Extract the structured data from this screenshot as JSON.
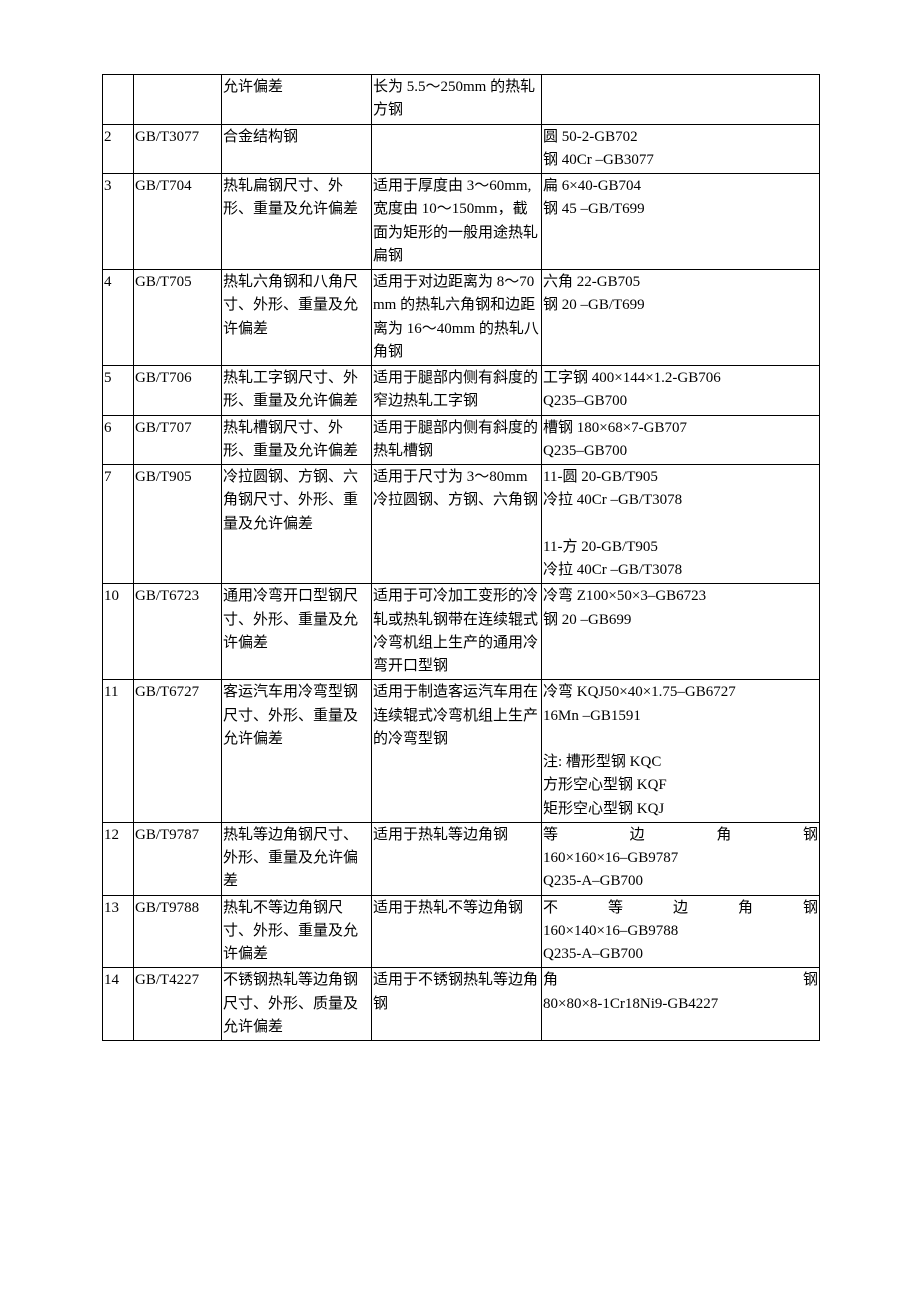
{
  "rows": [
    {
      "c1": "",
      "c2": "",
      "c3": "允许偏差",
      "c4": "长为 5.5～250mm 的热轧方钢",
      "c5": ""
    },
    {
      "c1": "2",
      "c2": "GB/T3077",
      "c3": "合金结构钢",
      "c4": "",
      "c5": "圆 50-2-GB702\n钢 40Cr –GB3077"
    },
    {
      "c1": "3",
      "c2": "GB/T704",
      "c3": "热轧扁钢尺寸、外形、重量及允许偏差",
      "c4": "适用于厚度由 3～60mm,宽度由 10～150mm，截面为矩形的一般用途热轧扁钢",
      "c5": "扁 6×40-GB704\n钢 45 –GB/T699"
    },
    {
      "c1": "4",
      "c2": "GB/T705",
      "c3": "热轧六角钢和八角尺寸、外形、重量及允许偏差",
      "c4": "适用于对边距离为 8～70mm 的热轧六角钢和边距离为 16～40mm 的热轧八角钢",
      "c5": "六角 22-GB705\n钢 20 –GB/T699"
    },
    {
      "c1": "5",
      "c2": "GB/T706",
      "c3": "热轧工字钢尺寸、外形、重量及允许偏差",
      "c4": "适用于腿部内侧有斜度的窄边热轧工字钢",
      "c5": "工字钢 400×144×1.2-GB706\nQ235–GB700"
    },
    {
      "c1": "6",
      "c2": "GB/T707",
      "c3": "热轧槽钢尺寸、外形、重量及允许偏差",
      "c4": "适用于腿部内侧有斜度的热轧槽钢",
      "c5": "槽钢 180×68×7-GB707\nQ235–GB700"
    },
    {
      "c1": "7",
      "c2": "GB/T905",
      "c3": "冷拉圆钢、方钢、六角钢尺寸、外形、重量及允许偏差",
      "c4": "适用于尺寸为 3～80mm冷拉圆钢、方钢、六角钢",
      "c5": "11-圆 20-GB/T905\n冷拉 40Cr –GB/T3078\n\n11-方 20-GB/T905\n冷拉 40Cr –GB/T3078\n"
    },
    {
      "c1": "10",
      "c2": "GB/T6723",
      "c3": "通用冷弯开口型钢尺寸、外形、重量及允许偏差",
      "c4": "适用于可冷加工变形的冷轧或热轧钢带在连续辊式冷弯机组上生产的通用冷弯开口型钢",
      "c5": "冷弯 Z100×50×3–GB6723\n钢 20 –GB699"
    },
    {
      "c1": "11",
      "c2": "GB/T6727",
      "c3": "客运汽车用冷弯型钢尺寸、外形、重量及允许偏差",
      "c4": "适用于制造客运汽车用在连续辊式冷弯机组上生产的冷弯型钢",
      "c5": "冷弯 KQJ50×40×1.75–GB6727\n16Mn –GB1591\n\n注: 槽形型钢 KQC\n方形空心型钢 KQF\n矩形空心型钢 KQJ"
    },
    {
      "c1": "12",
      "c2": "GB/T9787",
      "c3": "热轧等边角钢尺寸、外形、重量及允许偏差",
      "c4": "适用于热轧等边角钢",
      "c5j": "等边角钢",
      "c5r": "160×160×16–GB9787\nQ235-A–GB700\n"
    },
    {
      "c1": "13",
      "c2": "GB/T9788",
      "c3": "热轧不等边角钢尺寸、外形、重量及允许偏差",
      "c4": "适用于热轧不等边角钢",
      "c5j": "不等边角钢",
      "c5r": "160×140×16–GB9788\nQ235-A–GB700\n"
    },
    {
      "c1": "14",
      "c2": "GB/T4227",
      "c3": "不锈钢热轧等边角钢尺寸、外形、质量及允许偏差",
      "c4": "适用于不锈钢热轧等边角钢",
      "c5j": "角钢",
      "c5r": "80×80×8-1Cr18Ni9-GB4227"
    }
  ]
}
